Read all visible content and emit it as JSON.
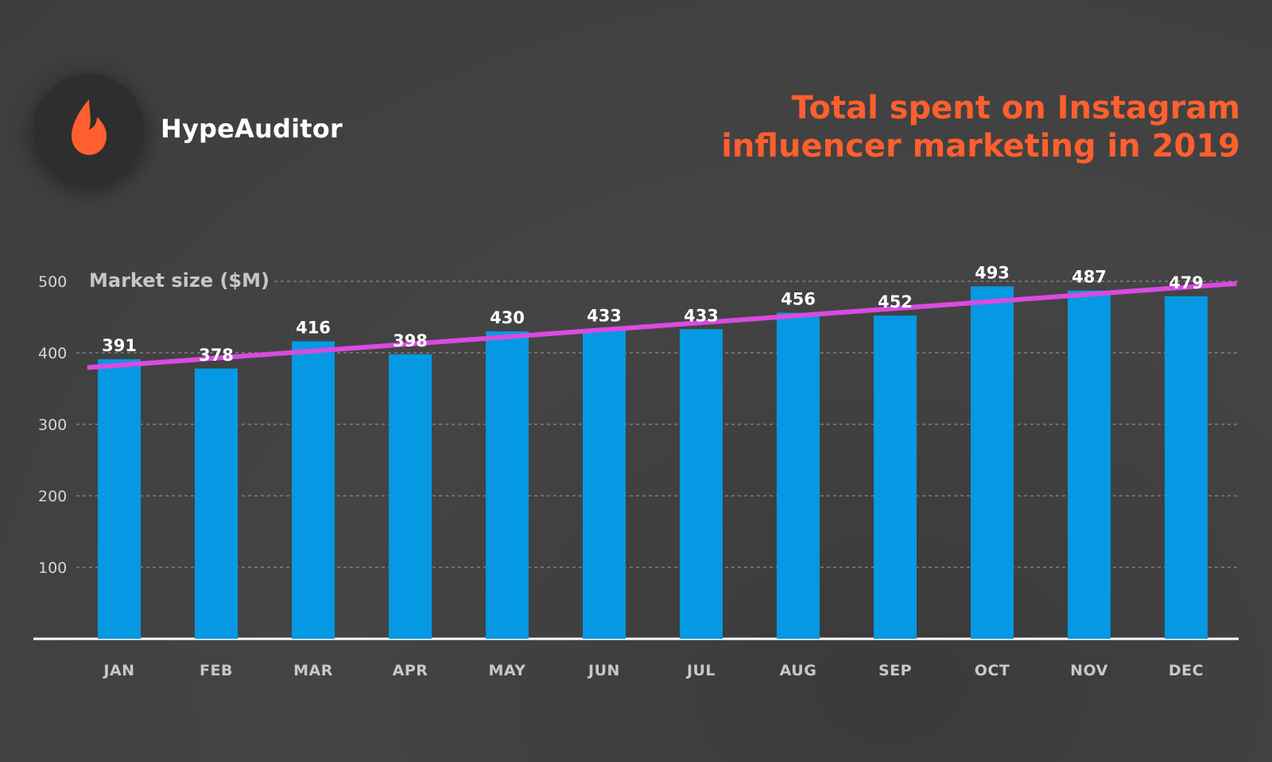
{
  "brand": {
    "name": "HypeAuditor",
    "icon": "flame-icon"
  },
  "colors": {
    "bar": "#0599e3",
    "trend": "#d94be0",
    "title": "#ff5f2e",
    "grid": "#8a8a8a",
    "axis": "#ffffff"
  },
  "chart_data": {
    "type": "bar",
    "title": "Total spent on Instagram influencer marketing in 2019",
    "ylabel": "Market size ($M)",
    "xlabel": "",
    "categories": [
      "JAN",
      "FEB",
      "MAR",
      "APR",
      "MAY",
      "JUN",
      "JUL",
      "AUG",
      "SEP",
      "OCT",
      "NOV",
      "DEC"
    ],
    "values": [
      391,
      378,
      416,
      398,
      430,
      433,
      433,
      456,
      452,
      493,
      487,
      479
    ],
    "ylim": [
      0,
      500
    ],
    "yticks": [
      100,
      200,
      300,
      400,
      500
    ],
    "grid": true,
    "trendline": {
      "type": "linear",
      "color": "#d94be0"
    }
  }
}
